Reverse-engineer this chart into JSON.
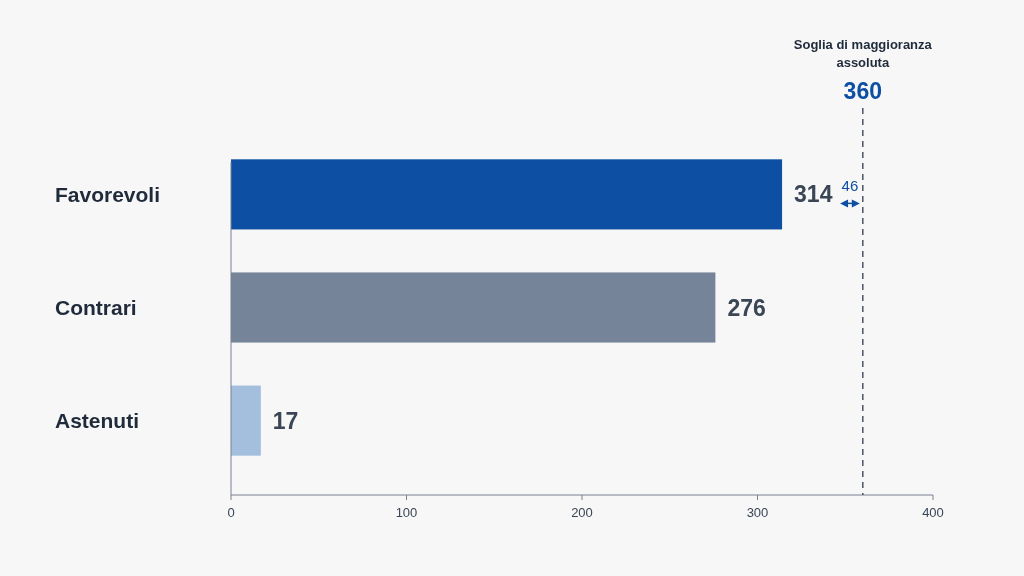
{
  "chart_data": {
    "type": "bar",
    "orientation": "horizontal",
    "categories": [
      "Favorevoli",
      "Contrari",
      "Astenuti"
    ],
    "values": [
      314,
      276,
      17
    ],
    "colors": [
      "#0d4fa3",
      "#768499",
      "#a3bfdd"
    ],
    "xlim": [
      0,
      400
    ],
    "xticks": [
      0,
      100,
      200,
      300,
      400
    ],
    "data_labels": true,
    "grid": false,
    "ref_lines": [
      {
        "axis": "x",
        "value": 360,
        "label": "360",
        "color": "#4a5566",
        "line_style": "dashed"
      }
    ],
    "annotations": [
      "Soglia di maggioranza assoluta",
      "46"
    ]
  }
}
